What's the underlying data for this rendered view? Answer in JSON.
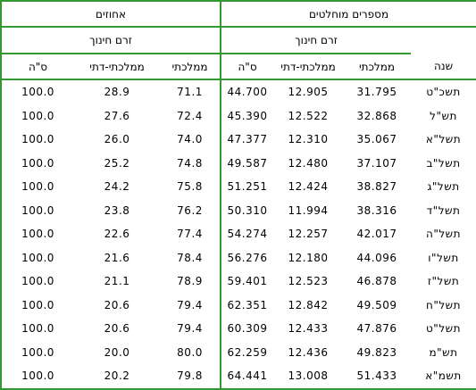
{
  "headers": {
    "absolute": "מספרים מוחלטים",
    "percent": "אחוזים",
    "stream": "זרם חינוך",
    "year": "שנה",
    "state": "ממלכתי",
    "state_religious": "ממלכתי-דתי",
    "total": "ס\"ה"
  },
  "rows": [
    {
      "year": "תשכ\"ט",
      "abs_state": "31.795",
      "abs_rel": "12.905",
      "abs_total": "44.700",
      "pct_state": "71.1",
      "pct_rel": "28.9",
      "pct_total": "100.0"
    },
    {
      "year": "תש\"ל",
      "abs_state": "32.868",
      "abs_rel": "12.522",
      "abs_total": "45.390",
      "pct_state": "72.4",
      "pct_rel": "27.6",
      "pct_total": "100.0"
    },
    {
      "year": "תשל\"א",
      "abs_state": "35.067",
      "abs_rel": "12.310",
      "abs_total": "47.377",
      "pct_state": "74.0",
      "pct_rel": "26.0",
      "pct_total": "100.0"
    },
    {
      "year": "תשל\"ב",
      "abs_state": "37.107",
      "abs_rel": "12.480",
      "abs_total": "49.587",
      "pct_state": "74.8",
      "pct_rel": "25.2",
      "pct_total": "100.0"
    },
    {
      "year": "תשל\"ג",
      "abs_state": "38.827",
      "abs_rel": "12.424",
      "abs_total": "51.251",
      "pct_state": "75.8",
      "pct_rel": "24.2",
      "pct_total": "100.0"
    },
    {
      "year": "תשל\"ד",
      "abs_state": "38.316",
      "abs_rel": "11.994",
      "abs_total": "50.310",
      "pct_state": "76.2",
      "pct_rel": "23.8",
      "pct_total": "100.0"
    },
    {
      "year": "תשל\"ה",
      "abs_state": "42.017",
      "abs_rel": "12.257",
      "abs_total": "54.274",
      "pct_state": "77.4",
      "pct_rel": "22.6",
      "pct_total": "100.0"
    },
    {
      "year": "תשל\"ו",
      "abs_state": "44.096",
      "abs_rel": "12.180",
      "abs_total": "56.276",
      "pct_state": "78.4",
      "pct_rel": "21.6",
      "pct_total": "100.0"
    },
    {
      "year": "תשל\"ז",
      "abs_state": "46.878",
      "abs_rel": "12.523",
      "abs_total": "59.401",
      "pct_state": "78.9",
      "pct_rel": "21.1",
      "pct_total": "100.0"
    },
    {
      "year": "תשל\"ח",
      "abs_state": "49.509",
      "abs_rel": "12.842",
      "abs_total": "62.351",
      "pct_state": "79.4",
      "pct_rel": "20.6",
      "pct_total": "100.0"
    },
    {
      "year": "תשל\"ט",
      "abs_state": "47.876",
      "abs_rel": "12.433",
      "abs_total": "60.309",
      "pct_state": "79.4",
      "pct_rel": "20.6",
      "pct_total": "100.0"
    },
    {
      "year": "תש\"מ",
      "abs_state": "49.823",
      "abs_rel": "12.436",
      "abs_total": "62.259",
      "pct_state": "80.0",
      "pct_rel": "20.0",
      "pct_total": "100.0"
    },
    {
      "year": "תשמ\"א",
      "abs_state": "51.433",
      "abs_rel": "13.008",
      "abs_total": "64.441",
      "pct_state": "79.8",
      "pct_rel": "20.2",
      "pct_total": "100.0"
    }
  ]
}
